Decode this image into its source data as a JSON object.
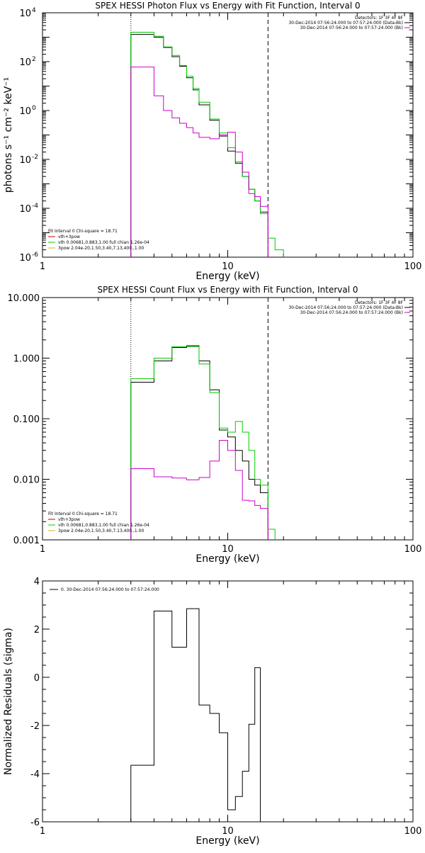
{
  "chart_data": [
    {
      "type": "line",
      "title": "SPEX HESSI Photon Flux vs Energy with Fit Function, Interval 0",
      "xlabel": "Energy (keV)",
      "ylabel": "photons s⁻¹ cm⁻² keV⁻¹",
      "xscale": "log",
      "yscale": "log",
      "xlim": [
        1,
        100
      ],
      "ylim": [
        1e-06,
        10000.0
      ],
      "xticks": [
        {
          "v": 1,
          "t": "1"
        },
        {
          "v": 10,
          "t": "10"
        },
        {
          "v": 100,
          "t": "100"
        }
      ],
      "yticks": [
        {
          "v": 10000.0,
          "b": "10",
          "e": "4"
        },
        {
          "v": 100.0,
          "b": "10",
          "e": "2"
        },
        {
          "v": 1,
          "b": "10",
          "e": "0"
        },
        {
          "v": 0.01,
          "b": "10",
          "e": "-2"
        },
        {
          "v": 0.0001,
          "b": "10",
          "e": "-4"
        },
        {
          "v": 1e-06,
          "b": "10",
          "e": "-6"
        }
      ],
      "vlines": [
        {
          "x": 3.0,
          "style": "dotted"
        },
        {
          "x": 16.5,
          "style": "dashed"
        }
      ],
      "legend_topright": [
        "Detectors: 1F 3F 4F 8F",
        "30-Dec-2014 07:56:24.000 to 07:57:24.000 (Data-Bk)",
        "30-Dec-2014 07:56:24.000 to 07:57:24.000 (Bk)"
      ],
      "legend_topright_colors": [
        "",
        "#000000",
        "#cc00cc"
      ],
      "legend_bottomleft": [
        "Fit Interval 0   Chi-square = 18.71",
        "vth+3pow",
        "vth 0.00681,0.883,1.00  full chian 1.26e-04",
        "3pow 2.04e-20,1.50,3.40,7.13,400.,1.00"
      ],
      "legend_bottomleft_colors": [
        "",
        "#cc0000",
        "#00cc00",
        "#e6a817"
      ],
      "edges": [
        3.0,
        3.5,
        4.0,
        4.5,
        5.0,
        5.5,
        6.0,
        6.5,
        7.0,
        8.0,
        9.0,
        10.0,
        11.0,
        12.0,
        13.0,
        14.0,
        15.0,
        16.5,
        18.0,
        20.0
      ],
      "series": [
        {
          "color": "#000000",
          "values": [
            1300,
            1300,
            1000,
            380,
            160,
            65,
            22,
            7,
            1.7,
            0.4,
            0.09,
            0.022,
            0.007,
            0.002,
            0.0006,
            0.0002,
            7e-05
          ]
        },
        {
          "color": "#00cc00",
          "values": [
            1600,
            1600,
            1100,
            400,
            180,
            70,
            25,
            8,
            2.2,
            0.45,
            0.12,
            0.03,
            0.008,
            0.002,
            0.0006,
            0.0002,
            6e-05,
            6e-06,
            2e-06
          ]
        },
        {
          "color": "#cc00cc",
          "values": [
            60,
            60,
            4,
            1.0,
            0.5,
            0.3,
            0.2,
            0.12,
            0.08,
            0.07,
            0.1,
            0.13,
            0.02,
            0.003,
            0.0004,
            0.0003,
            0.00012
          ]
        }
      ]
    },
    {
      "type": "line",
      "title": "SPEX HESSI Count Flux vs Energy with Fit Function, Interval 0",
      "xlabel": "Energy (keV)",
      "ylabel": "",
      "xscale": "log",
      "yscale": "log",
      "xlim": [
        1,
        100
      ],
      "ylim": [
        0.001,
        10
      ],
      "xticks": [
        {
          "v": 1,
          "t": "1"
        },
        {
          "v": 10,
          "t": "10"
        },
        {
          "v": 100,
          "t": "100"
        }
      ],
      "yticks": [
        {
          "v": 10,
          "t": "10.000"
        },
        {
          "v": 1,
          "t": "1.000"
        },
        {
          "v": 0.1,
          "t": "0.100"
        },
        {
          "v": 0.01,
          "t": "0.010"
        },
        {
          "v": 0.001,
          "t": "0.001"
        }
      ],
      "vlines": [
        {
          "x": 3.0,
          "style": "dotted"
        },
        {
          "x": 16.5,
          "style": "dashed"
        }
      ],
      "legend_topright": [
        "Detectors: 1F 3F 4F 8F",
        "30-Dec-2014 07:56:24.000 to 07:57:24.000 (Data-Bk)",
        "30-Dec-2014 07:56:24.000 to 07:57:24.000 (Bk)"
      ],
      "legend_topright_colors": [
        "",
        "#000000",
        "#cc00cc"
      ],
      "legend_bottomleft": [
        "Fit Interval 0   Chi-square = 18.71",
        "vth+3pow",
        "vth 0.00681,0.883,1.00  full chian 1.26e-04",
        "3pow 2.04e-20,1.50,3.40,7.13,400.,1.00"
      ],
      "legend_bottomleft_colors": [
        "",
        "#cc0000",
        "#00cc00",
        "#e6a817"
      ],
      "edges": [
        3.0,
        4.0,
        5.0,
        6.0,
        7.0,
        8.0,
        9.0,
        10.0,
        11.0,
        12.0,
        13.0,
        14.0,
        15.0,
        16.5,
        18.0
      ],
      "series": [
        {
          "color": "#000000",
          "values": [
            0.4,
            0.9,
            1.5,
            1.6,
            0.9,
            0.3,
            0.065,
            0.05,
            0.03,
            0.02,
            0.01,
            0.008,
            0.006
          ]
        },
        {
          "color": "#00cc00",
          "values": [
            0.46,
            1.0,
            1.55,
            1.55,
            0.8,
            0.27,
            0.07,
            0.06,
            0.09,
            0.06,
            0.03,
            0.01,
            0.008,
            0.0015
          ]
        },
        {
          "color": "#cc00cc",
          "values": [
            0.015,
            0.011,
            0.0105,
            0.0098,
            0.0107,
            0.02,
            0.044,
            0.03,
            0.014,
            0.0045,
            0.0044,
            0.0037,
            0.0033
          ]
        }
      ]
    },
    {
      "type": "line",
      "title": "",
      "xlabel": "Energy (keV)",
      "ylabel": "Normalized Residuals (sigma)",
      "xscale": "log",
      "yscale": "linear",
      "xlim": [
        1,
        100
      ],
      "ylim": [
        -6,
        4
      ],
      "xticks": [
        {
          "v": 1,
          "t": "1"
        },
        {
          "v": 10,
          "t": "10"
        },
        {
          "v": 100,
          "t": "100"
        }
      ],
      "yticks": [
        {
          "v": 4,
          "t": "4"
        },
        {
          "v": 2,
          "t": "2"
        },
        {
          "v": 0,
          "t": "0"
        },
        {
          "v": -2,
          "t": "-2"
        },
        {
          "v": -4,
          "t": "-4"
        },
        {
          "v": -6,
          "t": "-6"
        }
      ],
      "vlines": [],
      "legend_topright": [],
      "legend_topright_colors": [],
      "legend_bottomleft": [],
      "legend_bottomleft_colors": [],
      "legend_topleft": "0. 30-Dec-2014 07:56:24.000 to 07:57:24.000",
      "edges": [
        3.0,
        4.0,
        5.0,
        6.0,
        7.0,
        8.0,
        9.0,
        10.0,
        11.0,
        12.0,
        13.0,
        14.0,
        15.0,
        16.5
      ],
      "series": [
        {
          "color": "#000000",
          "values": [
            -3.65,
            2.75,
            1.25,
            2.85,
            -1.15,
            -1.5,
            -2.3,
            -5.5,
            -4.95,
            -3.9,
            -1.95,
            0.4
          ]
        }
      ]
    }
  ]
}
